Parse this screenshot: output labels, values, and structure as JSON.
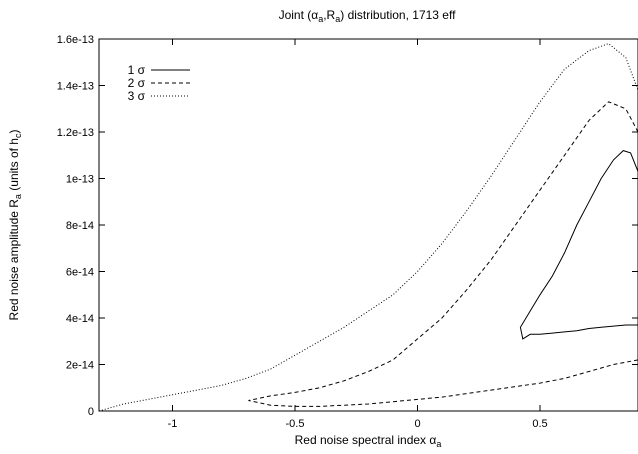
{
  "chart_data": {
    "type": "line",
    "title": {
      "pre": "Joint (",
      "alpha": "α",
      "alpha_sub": "a",
      "comma": ",R",
      "r_sub": "a",
      "post": ") distribution, 1713 eff"
    },
    "xlabel": {
      "text": "Red noise spectral index ",
      "sym": "α",
      "sub": "a"
    },
    "ylabel": {
      "text": "Red noise amplitude R",
      "sub": "a",
      "mid": " (units of h",
      "sub2": "c",
      "end": ")"
    },
    "xlim": [
      -1.3,
      0.9
    ],
    "ylim": [
      0,
      1.6e-13
    ],
    "x_ticks": [
      {
        "value": -1.0,
        "label": "-1"
      },
      {
        "value": -0.5,
        "label": "-0.5"
      },
      {
        "value": 0.0,
        "label": "0"
      },
      {
        "value": 0.5,
        "label": "0.5"
      }
    ],
    "y_ticks": [
      {
        "value": 0,
        "label": "0"
      },
      {
        "value": 2e-14,
        "label": "2e-14"
      },
      {
        "value": 4e-14,
        "label": "4e-14"
      },
      {
        "value": 6e-14,
        "label": "6e-14"
      },
      {
        "value": 8e-14,
        "label": "8e-14"
      },
      {
        "value": 1e-13,
        "label": "1e-13"
      },
      {
        "value": 1.2e-13,
        "label": "1.2e-13"
      },
      {
        "value": 1.4e-13,
        "label": "1.4e-13"
      },
      {
        "value": 1.6e-13,
        "label": "1.6e-13"
      }
    ],
    "grid": false,
    "legend_position": "top-left",
    "series": [
      {
        "name": "1 σ",
        "style": "solid",
        "points": [
          [
            0.9,
            3.7e-14
          ],
          [
            0.85,
            3.7e-14
          ],
          [
            0.8,
            3.65e-14
          ],
          [
            0.75,
            3.6e-14
          ],
          [
            0.7,
            3.55e-14
          ],
          [
            0.65,
            3.45e-14
          ],
          [
            0.6,
            3.4e-14
          ],
          [
            0.55,
            3.35e-14
          ],
          [
            0.5,
            3.3e-14
          ],
          [
            0.46,
            3.3e-14
          ],
          [
            0.43,
            3.1e-14
          ],
          [
            0.42,
            3.6e-14
          ],
          [
            0.46,
            4.3e-14
          ],
          [
            0.5,
            5e-14
          ],
          [
            0.55,
            5.8e-14
          ],
          [
            0.6,
            6.8e-14
          ],
          [
            0.65,
            8e-14
          ],
          [
            0.7,
            9e-14
          ],
          [
            0.75,
            1e-13
          ],
          [
            0.8,
            1.08e-13
          ],
          [
            0.84,
            1.12e-13
          ],
          [
            0.87,
            1.11e-13
          ],
          [
            0.9,
            1.03e-13
          ]
        ]
      },
      {
        "name": "2 σ",
        "style": "dashed",
        "points": [
          [
            0.9,
            2.2e-14
          ],
          [
            0.8,
            2e-14
          ],
          [
            0.7,
            1.7e-14
          ],
          [
            0.6,
            1.4e-14
          ],
          [
            0.5,
            1.2e-14
          ],
          [
            0.4,
            1.05e-14
          ],
          [
            0.3,
            9e-15
          ],
          [
            0.2,
            7.5e-15
          ],
          [
            0.1,
            6e-15
          ],
          [
            0.0,
            5e-15
          ],
          [
            -0.1,
            4e-15
          ],
          [
            -0.2,
            3e-15
          ],
          [
            -0.3,
            2.5e-15
          ],
          [
            -0.4,
            2e-15
          ],
          [
            -0.5,
            2e-15
          ],
          [
            -0.6,
            2.5e-15
          ],
          [
            -0.69,
            4.5e-15
          ],
          [
            -0.6,
            6.5e-15
          ],
          [
            -0.5,
            8e-15
          ],
          [
            -0.4,
            1e-14
          ],
          [
            -0.3,
            1.3e-14
          ],
          [
            -0.2,
            1.7e-14
          ],
          [
            -0.1,
            2.2e-14
          ],
          [
            0.0,
            3.1e-14
          ],
          [
            0.1,
            4e-14
          ],
          [
            0.2,
            5.2e-14
          ],
          [
            0.3,
            6.5e-14
          ],
          [
            0.4,
            8e-14
          ],
          [
            0.5,
            9.5e-14
          ],
          [
            0.6,
            1.1e-13
          ],
          [
            0.7,
            1.25e-13
          ],
          [
            0.78,
            1.33e-13
          ],
          [
            0.85,
            1.3e-13
          ],
          [
            0.9,
            1.2e-13
          ]
        ]
      },
      {
        "name": "3 σ",
        "style": "dotted",
        "points": [
          [
            -1.3,
            0
          ],
          [
            -1.2,
            3e-15
          ],
          [
            -1.1,
            5e-15
          ],
          [
            -1.0,
            7e-15
          ],
          [
            -0.9,
            9e-15
          ],
          [
            -0.8,
            1.1e-14
          ],
          [
            -0.7,
            1.4e-14
          ],
          [
            -0.6,
            1.8e-14
          ],
          [
            -0.5,
            2.4e-14
          ],
          [
            -0.4,
            3e-14
          ],
          [
            -0.3,
            3.6e-14
          ],
          [
            -0.2,
            4.3e-14
          ],
          [
            -0.1,
            5e-14
          ],
          [
            0.0,
            6e-14
          ],
          [
            0.1,
            7.2e-14
          ],
          [
            0.2,
            8.6e-14
          ],
          [
            0.3,
            1.01e-13
          ],
          [
            0.4,
            1.17e-13
          ],
          [
            0.5,
            1.33e-13
          ],
          [
            0.6,
            1.47e-13
          ],
          [
            0.7,
            1.55e-13
          ],
          [
            0.78,
            1.58e-13
          ],
          [
            0.85,
            1.52e-13
          ],
          [
            0.9,
            1.38e-13
          ]
        ]
      }
    ]
  }
}
